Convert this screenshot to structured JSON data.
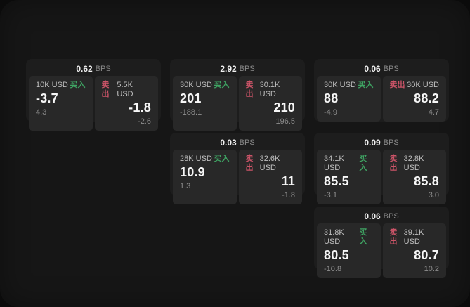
{
  "labels": {
    "bps_unit": "BPS",
    "buy": "买入",
    "sell": "卖出"
  },
  "colors": {
    "buy_green": "#3fa463",
    "sell_red": "#cc5468",
    "panel_bg": "#161616",
    "card_bg": "#1d1d1d",
    "tile_bg": "#282828"
  },
  "cards": [
    {
      "bps": "0.62",
      "buy": {
        "size": "10K USD",
        "value": "-3.7",
        "sub": "4.3"
      },
      "sell": {
        "size": "5.5K USD",
        "value": "-1.8",
        "sub": "-2.6"
      }
    },
    {
      "bps": "2.92",
      "buy": {
        "size": "30K USD",
        "value": "201",
        "sub": "-188.1"
      },
      "sell": {
        "size": "30.1K USD",
        "value": "210",
        "sub": "196.5"
      }
    },
    {
      "bps": "0.06",
      "buy": {
        "size": "30K USD",
        "value": "88",
        "sub": "-4.9"
      },
      "sell": {
        "size": "30K USD",
        "value": "88.2",
        "sub": "4.7"
      }
    },
    {
      "bps": "0.03",
      "buy": {
        "size": "28K USD",
        "value": "10.9",
        "sub": "1.3"
      },
      "sell": {
        "size": "32.6K USD",
        "value": "11",
        "sub": "-1.8"
      }
    },
    {
      "bps": "0.09",
      "buy": {
        "size": "34.1K USD",
        "value": "85.5",
        "sub": "-3.1"
      },
      "sell": {
        "size": "32.8K USD",
        "value": "85.8",
        "sub": "3.0"
      }
    },
    {
      "bps": "0.06",
      "buy": {
        "size": "31.8K USD",
        "value": "80.5",
        "sub": "-10.8"
      },
      "sell": {
        "size": "39.1K USD",
        "value": "80.7",
        "sub": "10.2"
      }
    }
  ]
}
